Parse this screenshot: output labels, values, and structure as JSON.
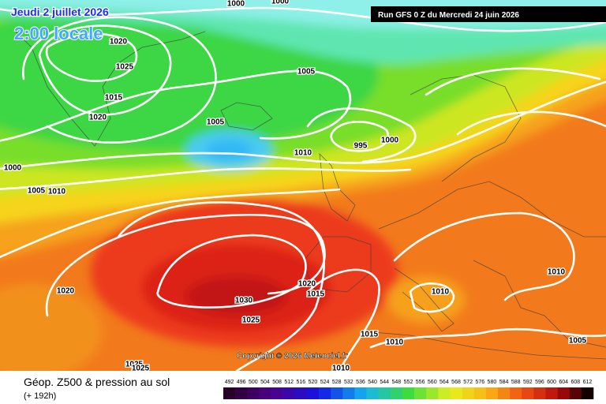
{
  "header": {
    "date": "Jeudi 2 juillet 2026",
    "time": "2:00 locale",
    "run": "Run GFS 0 Z du Mercredi 24 juin 2026"
  },
  "copyright": "Copyright © 2026 Meteociel.fr",
  "isobar_labels": [
    1000,
    1000,
    1020,
    1025,
    1015,
    1020,
    1005,
    1005,
    1010,
    995,
    1000,
    1000,
    1005,
    1010,
    1020,
    1030,
    1025,
    1020,
    1015,
    1010,
    1010,
    1015,
    1010,
    1005,
    1025,
    1025,
    1010
  ],
  "legend": {
    "title": "Géop. Z500 & pression au sol",
    "subtitle": "(+ 192h)",
    "scale": [
      492,
      496,
      500,
      504,
      508,
      512,
      516,
      520,
      524,
      528,
      532,
      536,
      540,
      544,
      548,
      552,
      556,
      560,
      564,
      568,
      572,
      576,
      580,
      584,
      588,
      592,
      596,
      600,
      604,
      608,
      612
    ]
  }
}
